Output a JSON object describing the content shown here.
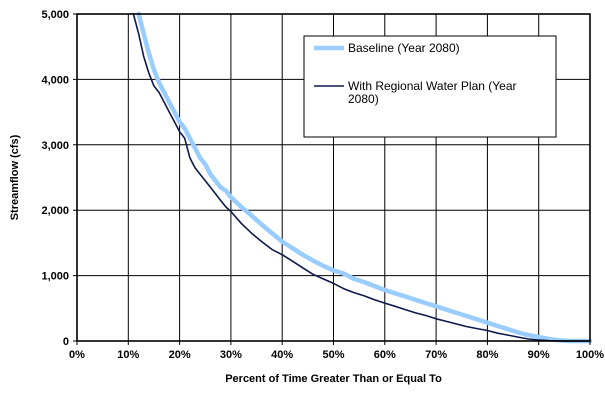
{
  "chart_data": {
    "type": "line",
    "title": "",
    "xlabel": "Percent of Time Greater Than or Equal To",
    "ylabel": "Streamflow (cfs)",
    "xlim": [
      0,
      100
    ],
    "ylim": [
      0,
      5000
    ],
    "x_ticks": [
      0,
      10,
      20,
      30,
      40,
      50,
      60,
      70,
      80,
      90,
      100
    ],
    "x_tick_labels": [
      "0%",
      "10%",
      "20%",
      "30%",
      "40%",
      "50%",
      "60%",
      "70%",
      "80%",
      "90%",
      "100%"
    ],
    "y_ticks": [
      0,
      1000,
      2000,
      3000,
      4000,
      5000
    ],
    "y_tick_labels": [
      "0",
      "1,000",
      "2,000",
      "3,000",
      "4,000",
      "5,000"
    ],
    "grid": true,
    "legend_position": "top-right",
    "series": [
      {
        "name": "Baseline (Year 2080)",
        "color": "#99CCFF",
        "x": [
          12,
          13,
          14,
          15,
          16,
          17,
          18,
          19,
          20,
          21,
          22,
          23,
          24,
          25,
          26,
          27,
          28,
          29,
          30,
          32,
          34,
          36,
          38,
          40,
          42,
          44,
          46,
          48,
          50,
          52,
          54,
          56,
          58,
          60,
          62,
          64,
          66,
          68,
          70,
          72,
          74,
          76,
          78,
          80,
          82,
          84,
          86,
          88,
          90,
          92,
          94,
          96,
          98,
          100
        ],
        "y": [
          5000,
          4700,
          4400,
          4150,
          3950,
          3800,
          3650,
          3500,
          3350,
          3250,
          3100,
          2950,
          2800,
          2700,
          2550,
          2450,
          2350,
          2300,
          2200,
          2050,
          1920,
          1780,
          1650,
          1520,
          1420,
          1320,
          1230,
          1150,
          1080,
          1030,
          950,
          900,
          840,
          780,
          730,
          680,
          630,
          580,
          530,
          480,
          430,
          380,
          330,
          280,
          230,
          180,
          130,
          90,
          60,
          30,
          10,
          0,
          0,
          0
        ]
      },
      {
        "name": "With Regional Water Plan (Year 2080)",
        "color": "#0D1A4D",
        "x": [
          11,
          12,
          13,
          14,
          15,
          16,
          17,
          18,
          19,
          20,
          21,
          22,
          23,
          24,
          25,
          26,
          27,
          28,
          29,
          30,
          32,
          34,
          36,
          38,
          40,
          42,
          44,
          46,
          48,
          50,
          52,
          54,
          56,
          58,
          60,
          62,
          64,
          66,
          68,
          70,
          72,
          74,
          76,
          78,
          80,
          82,
          84,
          86,
          88,
          90,
          92,
          94,
          95,
          96,
          98,
          100
        ],
        "y": [
          5000,
          4700,
          4350,
          4100,
          3900,
          3800,
          3650,
          3500,
          3350,
          3200,
          3100,
          2800,
          2650,
          2550,
          2450,
          2350,
          2250,
          2150,
          2050,
          1980,
          1800,
          1650,
          1520,
          1400,
          1320,
          1220,
          1120,
          1020,
          950,
          880,
          800,
          740,
          690,
          630,
          580,
          530,
          480,
          430,
          390,
          340,
          300,
          260,
          220,
          190,
          160,
          120,
          90,
          60,
          30,
          15,
          5,
          0,
          0,
          0,
          0,
          0
        ]
      }
    ]
  }
}
